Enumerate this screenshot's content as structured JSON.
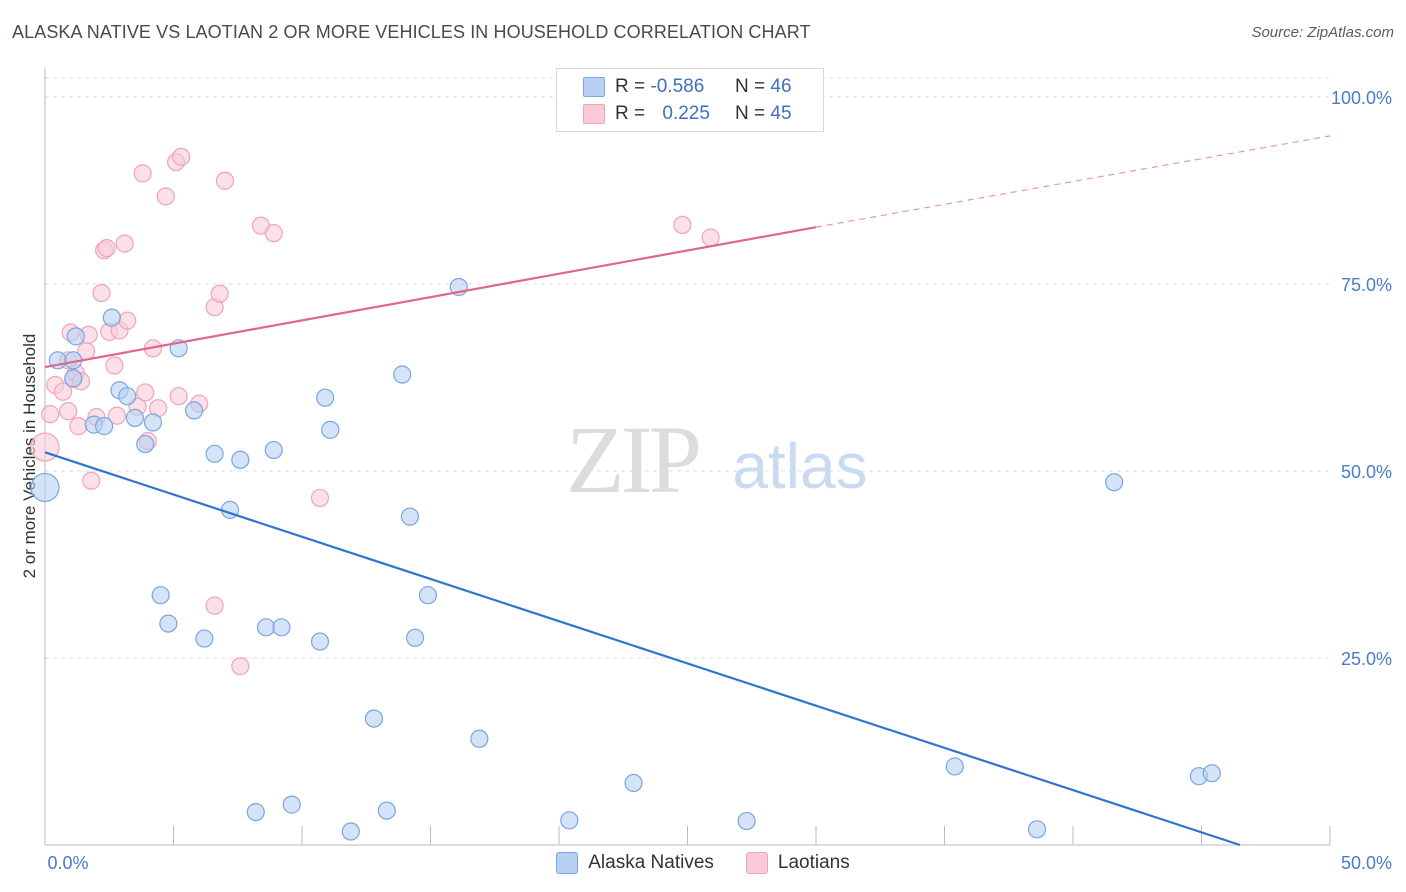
{
  "title": "ALASKA NATIVE VS LAOTIAN 2 OR MORE VEHICLES IN HOUSEHOLD CORRELATION CHART",
  "source": "Source: ZipAtlas.com",
  "watermark": {
    "zip": "ZIP",
    "atlas": "atlas"
  },
  "legend": {
    "rows": [
      {
        "r_label": "R =",
        "r_value": "-0.586",
        "n_label": "N =",
        "n_value": "46"
      },
      {
        "r_label": "R =",
        "r_value": "0.225",
        "n_label": "N =",
        "n_value": "45"
      }
    ]
  },
  "chart_data": {
    "type": "scatter",
    "title": "ALASKA NATIVE VS LAOTIAN 2 OR MORE VEHICLES IN HOUSEHOLD CORRELATION CHART",
    "xlabel": "",
    "ylabel": "2 or more Vehicles in Household",
    "xlim": [
      0,
      50
    ],
    "ylim": [
      0,
      100
    ],
    "x_tick_labels": [
      "0.0%",
      "50.0%"
    ],
    "y_ticks": [
      25,
      50,
      75,
      100
    ],
    "y_tick_labels": [
      "25.0%",
      "50.0%",
      "75.0%",
      "100.0%"
    ],
    "grid": true,
    "legend_position": "top-center",
    "series": [
      {
        "name": "Alaska Natives",
        "color": "#7aa6e0",
        "fill": "#b8d0f2",
        "r": -0.586,
        "n": 46,
        "trend": {
          "x0": 0,
          "y0": 52.5,
          "x1": 46.5,
          "y1": 0
        },
        "points": [
          [
            0.0,
            47.8
          ],
          [
            0.5,
            64.8
          ],
          [
            1.1,
            64.8
          ],
          [
            1.1,
            62.4
          ],
          [
            1.2,
            68.0
          ],
          [
            1.9,
            56.2
          ],
          [
            2.3,
            56.0
          ],
          [
            2.6,
            70.5
          ],
          [
            2.9,
            60.8
          ],
          [
            3.2,
            60.0
          ],
          [
            3.5,
            57.1
          ],
          [
            3.9,
            53.6
          ],
          [
            4.2,
            56.5
          ],
          [
            4.5,
            33.4
          ],
          [
            4.8,
            29.6
          ],
          [
            5.2,
            66.4
          ],
          [
            5.8,
            58.1
          ],
          [
            6.2,
            27.6
          ],
          [
            6.6,
            52.3
          ],
          [
            7.2,
            44.8
          ],
          [
            7.6,
            51.5
          ],
          [
            8.2,
            4.4
          ],
          [
            8.6,
            29.1
          ],
          [
            8.9,
            52.8
          ],
          [
            9.2,
            29.1
          ],
          [
            9.6,
            5.4
          ],
          [
            10.7,
            27.2
          ],
          [
            10.9,
            59.8
          ],
          [
            11.1,
            55.5
          ],
          [
            11.9,
            1.8
          ],
          [
            12.8,
            16.9
          ],
          [
            13.3,
            4.6
          ],
          [
            13.9,
            62.9
          ],
          [
            14.2,
            43.9
          ],
          [
            14.4,
            27.7
          ],
          [
            14.9,
            33.4
          ],
          [
            16.1,
            74.6
          ],
          [
            16.9,
            14.2
          ],
          [
            20.4,
            3.3
          ],
          [
            22.9,
            8.3
          ],
          [
            27.3,
            3.2
          ],
          [
            35.4,
            10.5
          ],
          [
            38.6,
            2.1
          ],
          [
            41.6,
            48.5
          ],
          [
            44.9,
            9.2
          ],
          [
            45.4,
            9.6
          ]
        ]
      },
      {
        "name": "Laotians",
        "color": "#f0a3bb",
        "fill": "#f9cbd8",
        "r": 0.225,
        "n": 45,
        "trend": {
          "x0": 0,
          "y0": 63.9,
          "x1": 30,
          "y1": 82.6,
          "x_dash_end": 50,
          "y_dash_end": 94.8
        },
        "points": [
          [
            0.0,
            53.2
          ],
          [
            0.2,
            57.6
          ],
          [
            0.4,
            61.5
          ],
          [
            0.7,
            60.6
          ],
          [
            0.9,
            64.8
          ],
          [
            1.0,
            68.5
          ],
          [
            1.1,
            62.3
          ],
          [
            1.2,
            63.1
          ],
          [
            1.3,
            56.0
          ],
          [
            1.4,
            62.0
          ],
          [
            1.6,
            66.0
          ],
          [
            1.7,
            68.2
          ],
          [
            1.8,
            48.7
          ],
          [
            2.0,
            57.2
          ],
          [
            2.2,
            73.8
          ],
          [
            2.3,
            79.5
          ],
          [
            2.4,
            79.8
          ],
          [
            2.5,
            68.6
          ],
          [
            2.7,
            64.1
          ],
          [
            2.8,
            57.4
          ],
          [
            2.9,
            68.8
          ],
          [
            3.1,
            80.4
          ],
          [
            3.2,
            70.1
          ],
          [
            3.6,
            58.6
          ],
          [
            3.8,
            89.8
          ],
          [
            3.9,
            60.5
          ],
          [
            4.0,
            54.0
          ],
          [
            4.2,
            66.4
          ],
          [
            4.4,
            58.4
          ],
          [
            4.7,
            86.7
          ],
          [
            5.1,
            91.3
          ],
          [
            5.2,
            60.0
          ],
          [
            5.3,
            92.0
          ],
          [
            6.0,
            59.0
          ],
          [
            6.6,
            71.9
          ],
          [
            6.6,
            32.0
          ],
          [
            6.8,
            73.7
          ],
          [
            7.0,
            88.8
          ],
          [
            7.6,
            23.9
          ],
          [
            8.4,
            82.8
          ],
          [
            8.9,
            81.8
          ],
          [
            10.7,
            46.4
          ],
          [
            24.8,
            82.9
          ],
          [
            25.9,
            81.2
          ],
          [
            0.9,
            58.0
          ]
        ]
      }
    ]
  }
}
